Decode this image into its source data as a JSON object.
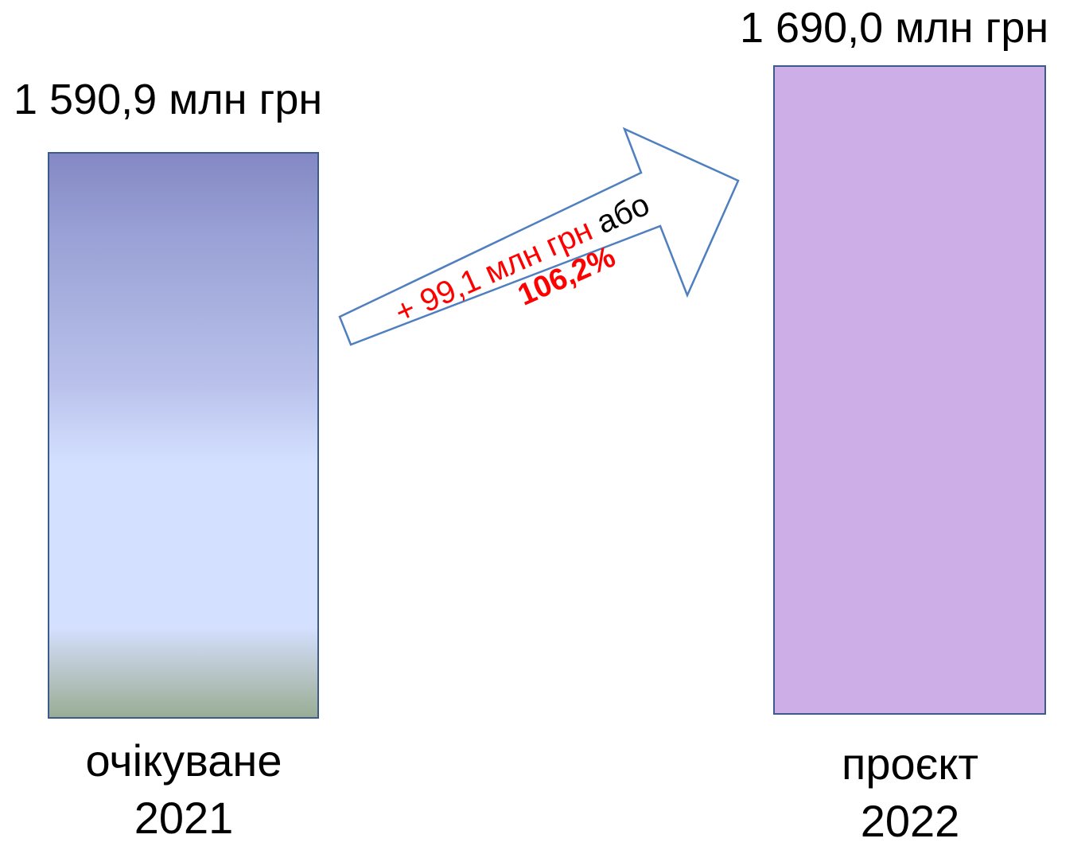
{
  "chart_data": {
    "type": "bar",
    "categories": [
      "очікуване 2021",
      "проєкт 2022"
    ],
    "values": [
      1590.9,
      1690.0
    ],
    "bars": [
      {
        "value_label": "1 590,9 млн грн",
        "category_line1": "очікуване",
        "category_line2": "2021",
        "fill": "gradient",
        "gradient_colors": [
          "#8488c4",
          "#d4e0ff",
          "#99ad95"
        ]
      },
      {
        "value_label": "1 690,0 млн грн",
        "category_line1": "проєкт",
        "category_line2": "2022",
        "fill": "#ceaee6"
      }
    ],
    "annotation": {
      "change_amount": "+ 99,1 млн грн",
      "connector": "або",
      "change_percent": "106,2%",
      "color": "#ff0000"
    },
    "outline_color": "#3c5a8c"
  }
}
